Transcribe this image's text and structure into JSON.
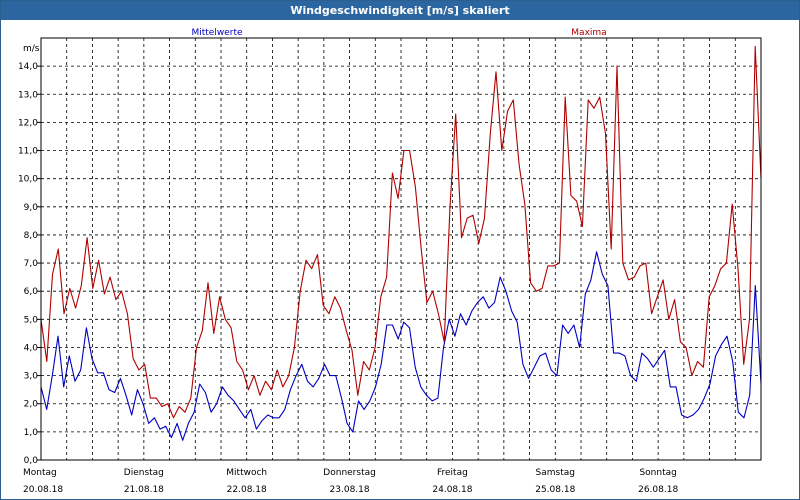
{
  "window": {
    "title": "Windgeschwindigkeit [m/s] skaliert"
  },
  "chart_data": {
    "type": "line",
    "title": "Windgeschwindigkeit [m/s] skaliert",
    "ylabel": "m/s",
    "ylim": [
      0,
      15
    ],
    "yticks": [
      "0,0",
      "1,0",
      "2,0",
      "3,0",
      "4,0",
      "5,0",
      "6,0",
      "7,0",
      "8,0",
      "9,0",
      "10,0",
      "11,0",
      "12,0",
      "13,0",
      "14,0"
    ],
    "xlim_days": [
      0,
      7
    ],
    "grid": true,
    "days": [
      {
        "name": "Montag",
        "date": "20.08.18"
      },
      {
        "name": "Dienstag",
        "date": "21.08.18"
      },
      {
        "name": "Mittwoch",
        "date": "22.08.18"
      },
      {
        "name": "Donnerstag",
        "date": "23.08.18"
      },
      {
        "name": "Freitag",
        "date": "24.08.18"
      },
      {
        "name": "Samstag",
        "date": "25.08.18"
      },
      {
        "name": "Sonntag",
        "date": "26.08.18"
      }
    ],
    "series": [
      {
        "name": "Mittelwerte",
        "color": "#0000c0",
        "values": [
          2.6,
          1.8,
          3.0,
          4.4,
          2.6,
          3.7,
          2.8,
          3.2,
          4.7,
          3.6,
          3.1,
          3.1,
          2.5,
          2.4,
          2.9,
          2.3,
          1.6,
          2.5,
          2.0,
          1.3,
          1.5,
          1.1,
          1.2,
          0.8,
          1.3,
          0.7,
          1.3,
          1.7,
          2.7,
          2.4,
          1.7,
          2.0,
          2.6,
          2.3,
          2.1,
          1.8,
          1.5,
          1.8,
          1.1,
          1.4,
          1.6,
          1.5,
          1.5,
          1.8,
          2.5,
          3.0,
          3.4,
          2.8,
          2.6,
          2.9,
          3.4,
          3.0,
          3.0,
          2.2,
          1.3,
          1.0,
          2.1,
          1.8,
          2.1,
          2.6,
          3.4,
          4.8,
          4.8,
          4.3,
          4.9,
          4.7,
          3.3,
          2.6,
          2.3,
          2.1,
          2.2,
          4.0,
          5.0,
          4.4,
          5.2,
          4.8,
          5.3,
          5.6,
          5.8,
          5.4,
          5.6,
          6.5,
          6.0,
          5.3,
          4.9,
          3.4,
          2.9,
          3.3,
          3.7,
          3.8,
          3.2,
          3.0,
          4.8,
          4.5,
          4.8,
          4.0,
          5.9,
          6.4,
          7.4,
          6.6,
          6.2,
          3.8,
          3.8,
          3.7,
          3.0,
          2.8,
          3.8,
          3.6,
          3.3,
          3.6,
          3.9,
          2.6,
          2.6,
          1.6,
          1.5,
          1.6,
          1.8,
          2.2,
          2.7,
          3.7,
          4.1,
          4.4,
          3.5,
          1.7,
          1.5,
          2.3,
          6.2,
          2.7
        ]
      },
      {
        "name": "Maxima",
        "color": "#b00000",
        "values": [
          5.0,
          3.5,
          6.6,
          7.5,
          5.2,
          6.1,
          5.4,
          6.2,
          7.9,
          6.1,
          7.1,
          5.9,
          6.5,
          5.7,
          6.0,
          5.2,
          3.6,
          3.2,
          3.4,
          2.2,
          2.2,
          1.9,
          2.0,
          1.5,
          1.9,
          1.7,
          2.2,
          4.0,
          4.6,
          6.3,
          4.5,
          5.8,
          5.0,
          4.7,
          3.5,
          3.2,
          2.5,
          3.0,
          2.3,
          2.8,
          2.5,
          3.2,
          2.6,
          3.0,
          4.0,
          6.0,
          7.1,
          6.8,
          7.3,
          5.5,
          5.2,
          5.8,
          5.4,
          4.6,
          3.9,
          2.3,
          3.5,
          3.2,
          4.0,
          5.8,
          6.5,
          10.2,
          9.3,
          11.0,
          11.0,
          9.7,
          7.5,
          5.6,
          6.0,
          5.2,
          4.2,
          9.0,
          12.3,
          7.9,
          8.6,
          8.7,
          7.7,
          8.6,
          11.6,
          13.8,
          11.0,
          12.4,
          12.8,
          10.5,
          9.1,
          6.3,
          6.0,
          6.1,
          6.9,
          6.9,
          7.0,
          12.9,
          9.4,
          9.2,
          8.3,
          12.8,
          12.5,
          12.9,
          11.6,
          7.5,
          14.0,
          7.0,
          6.4,
          6.5,
          6.9,
          7.0,
          5.2,
          5.8,
          6.4,
          5.0,
          5.7,
          4.2,
          4.0,
          3.0,
          3.5,
          3.3,
          5.8,
          6.2,
          6.8,
          7.0,
          9.1,
          6.8,
          3.4,
          5.0,
          14.7,
          10.0
        ]
      }
    ]
  }
}
